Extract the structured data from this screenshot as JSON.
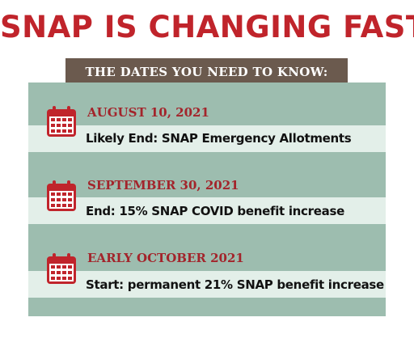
{
  "title": "SNAP IS CHANGING FAST",
  "subtitle": "THE DATES YOU NEED TO KNOW:",
  "events": [
    {
      "date": "AUGUST 10, 2021",
      "text": "Likely End: SNAP Emergency Allotments",
      "icon": "calendar-icon"
    },
    {
      "date": "SEPTEMBER 30, 2021",
      "text": "End: 15% SNAP COVID benefit increase",
      "icon": "calendar-icon"
    },
    {
      "date": "EARLY OCTOBER 2021",
      "text": "Start: permanent 21% SNAP benefit increase",
      "icon": "calendar-icon"
    }
  ],
  "colors": {
    "title": "#c0242b",
    "date": "#a3242b",
    "subtitle_bar": "#6b5a4e",
    "panel": "#9dbdaf",
    "band": "#e3efe9",
    "icon": "#c0242b"
  }
}
